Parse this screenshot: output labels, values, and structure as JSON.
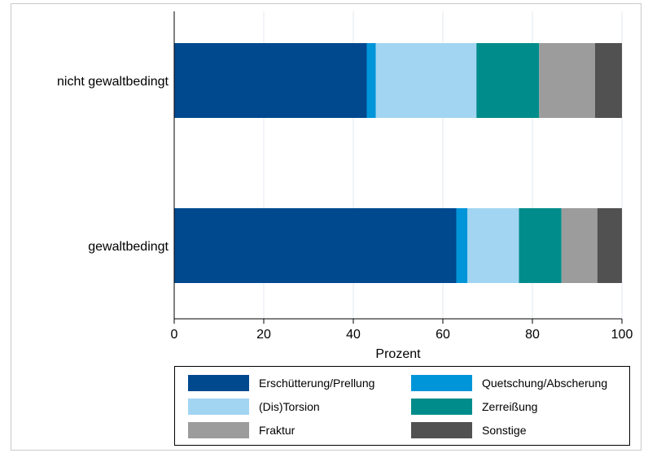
{
  "chart_data": {
    "type": "bar",
    "orientation": "horizontal",
    "stacked": true,
    "categories": [
      "nicht gewaltbedingt",
      "gewaltbedingt"
    ],
    "series": [
      {
        "name": "Erschütterung/Prellung",
        "color": "#00498f",
        "values": [
          43,
          63
        ]
      },
      {
        "name": "Quetschung/Abscherung",
        "color": "#0095d9",
        "values": [
          2,
          2.5
        ]
      },
      {
        "name": "(Dis)Torsion",
        "color": "#a2d5f1",
        "values": [
          22.5,
          11.5
        ]
      },
      {
        "name": "Zerreißung",
        "color": "#008c8a",
        "values": [
          14,
          9.5
        ]
      },
      {
        "name": "Fraktur",
        "color": "#9c9c9c",
        "values": [
          12.5,
          8
        ]
      },
      {
        "name": "Sonstige",
        "color": "#515151",
        "values": [
          6,
          5.5
        ]
      }
    ],
    "xlabel": "Prozent",
    "xlim": [
      0,
      100
    ],
    "xticks": [
      0,
      20,
      40,
      60,
      80,
      100
    ],
    "grid": true,
    "legend_position": "bottom"
  }
}
